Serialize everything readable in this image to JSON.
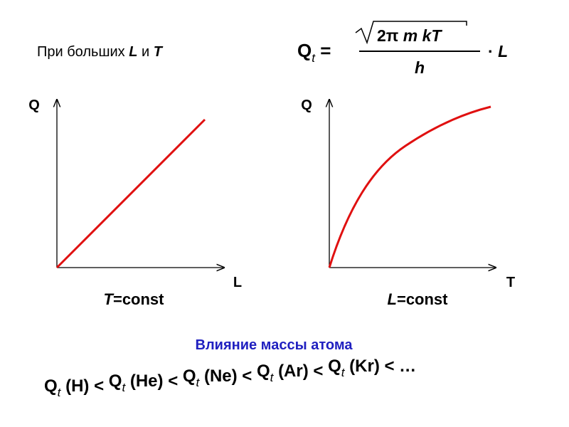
{
  "condition": {
    "prefix": "При больших",
    "var1": "L",
    "conj": "и",
    "var2": "T"
  },
  "formula": {
    "lhs": "Q",
    "lhs_sub": "t",
    "equals": "=",
    "num_const": "2π",
    "num_vars": "m kT",
    "denominator": "h",
    "dot": "·",
    "factor": "L"
  },
  "graph_left": {
    "y_label": "Q",
    "x_label": "L",
    "caption_var": "T",
    "caption_eq": "=",
    "caption_value": "const"
  },
  "graph_right": {
    "y_label": "Q",
    "x_label": "T",
    "caption_var": "L",
    "caption_eq": "=",
    "caption_value": "const"
  },
  "heading": "Влияние массы атома",
  "comparison": {
    "items": [
      {
        "symbol": "Q",
        "subscript": "t",
        "element": "(H)"
      },
      {
        "symbol": "Q",
        "subscript": "t",
        "element": "(He)"
      },
      {
        "symbol": "Q",
        "subscript": "t",
        "element": "(Ne)"
      },
      {
        "symbol": "Q",
        "subscript": "t",
        "element": "(Ar)"
      },
      {
        "symbol": "Q",
        "subscript": "t",
        "element": "(Kr)"
      }
    ],
    "relation": "<",
    "ellipsis": "…"
  }
}
